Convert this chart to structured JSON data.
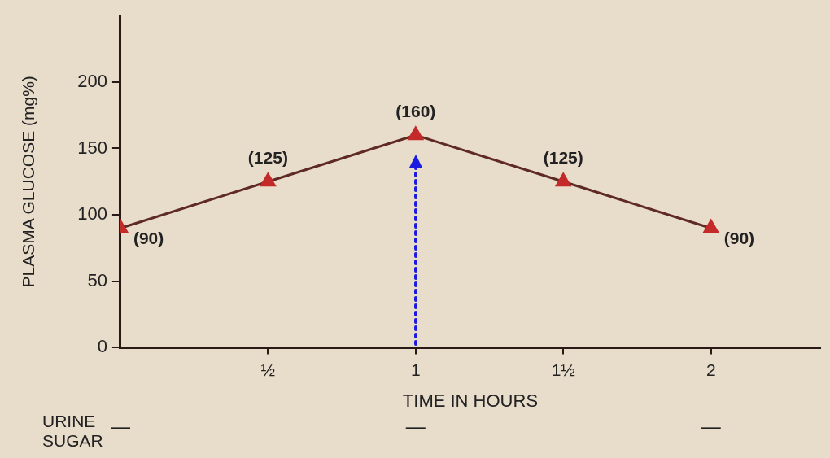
{
  "chart_data": {
    "type": "line",
    "xlabel": "TIME IN HOURS",
    "ylabel": "PLASMA GLUCOSE (mg%)",
    "x": [
      0,
      0.5,
      1,
      1.5,
      2
    ],
    "series": [
      {
        "color": "#5e2a22",
        "colors": [
          "#c42a2a",
          "#c42a2a",
          "#c42a2a",
          "#c42a2a",
          "#c42a2a"
        ],
        "values": [
          90,
          125,
          160,
          125,
          90
        ],
        "value_labels": [
          "(90)",
          "(125)",
          "(160)",
          "(125)",
          "(90)"
        ]
      }
    ],
    "xlim": [
      0,
      2.37
    ],
    "xticks": [
      {
        "value": 0.5,
        "label": "½"
      },
      1,
      {
        "value": 1.5,
        "label": "1½"
      },
      2
    ],
    "ylim": [
      0,
      250
    ],
    "yticks": [
      0,
      50,
      100,
      150,
      200
    ],
    "grid": false,
    "legend": false,
    "marker": "triangle",
    "line_style": "solid",
    "annotations": [
      "URINE SUGAR",
      "—",
      "—",
      "—"
    ]
  }
}
